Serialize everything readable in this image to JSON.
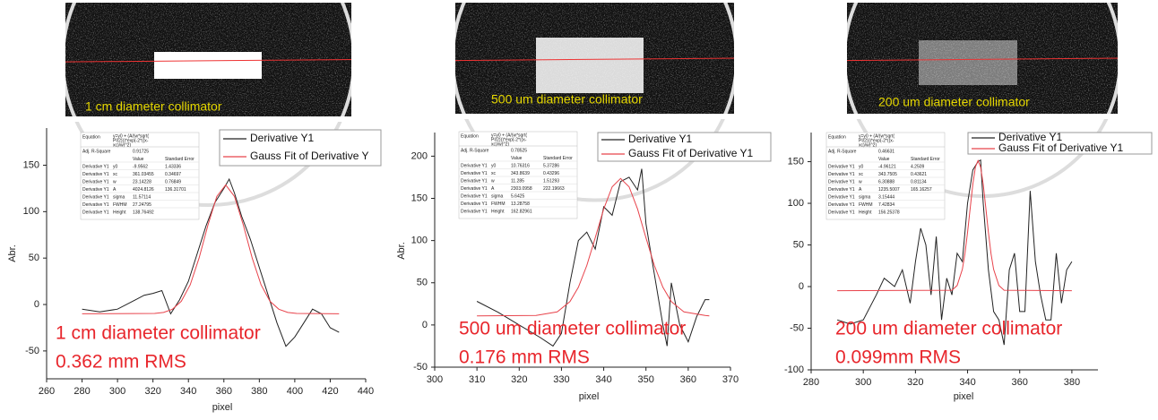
{
  "chart_data": [
    {
      "type": "line",
      "image_caption": "1 cm diameter collimator",
      "xlabel": "pixel",
      "ylabel": "Abr.",
      "annotations": [
        "1 cm diameter collimator",
        "0.362 mm RMS"
      ],
      "xlim": [
        260,
        440
      ],
      "xticks": [
        260,
        280,
        300,
        320,
        340,
        360,
        380,
        400,
        420,
        440
      ],
      "ylim": [
        -80,
        190
      ],
      "yticks": [
        -50,
        0,
        50,
        100,
        150
      ],
      "series": [
        {
          "name": "Derivative Y1",
          "color": "#222222",
          "x": [
            280,
            290,
            300,
            310,
            315,
            320,
            325,
            330,
            335,
            340,
            345,
            350,
            355,
            360,
            363,
            366,
            370,
            375,
            380,
            385,
            390,
            395,
            400,
            405,
            410,
            415,
            420,
            425
          ],
          "values": [
            -5,
            -8,
            -5,
            5,
            10,
            12,
            15,
            -10,
            5,
            25,
            55,
            85,
            110,
            125,
            135,
            120,
            95,
            70,
            40,
            10,
            -20,
            -45,
            -35,
            -20,
            -5,
            -10,
            -25,
            -30
          ]
        },
        {
          "name": "Gauss Fit of Derivative Y",
          "color": "#e8434b",
          "x": [
            280,
            321,
            326,
            331,
            336,
            341,
            346,
            351,
            356,
            361,
            366,
            371,
            376,
            381,
            386,
            391,
            396,
            401,
            425
          ],
          "values": [
            -10,
            -9.6,
            -8.5,
            -5.1,
            3.5,
            21.2,
            50,
            85.5,
            116.4,
            128.8,
            116.4,
            85.5,
            50,
            21.2,
            3.5,
            -5.1,
            -8.5,
            -9.6,
            -10
          ]
        }
      ],
      "fit_table": {
        "equation_label": "Equation",
        "equation_lines": [
          "y=y0 + (A/(w*sqrt(",
          "PI/2)))*exp(-2*((x-",
          "xc)/w)^2)"
        ],
        "r_square_label": "Adj. R-Square",
        "r_square": "0.91725",
        "header": [
          "Value",
          "Standard Error"
        ],
        "rows": [
          [
            "Derivative Y1",
            "y0",
            "-9.9562",
            "1.43336"
          ],
          [
            "Derivative Y1",
            "xc",
            "361.03455",
            "0.34697"
          ],
          [
            "Derivative Y1",
            "w",
            "23.14228",
            "0.76849"
          ],
          [
            "Derivative Y1",
            "A",
            "4024.8126",
            "136.31701"
          ],
          [
            "Derivative Y1",
            "sigma",
            "11.57114"
          ],
          [
            "Derivative Y1",
            "FWHM",
            "27.24795"
          ],
          [
            "Derivative Y1",
            "Height",
            "138.76492"
          ]
        ]
      }
    },
    {
      "type": "line",
      "image_caption": "500 um diameter collimator",
      "xlabel": "pixel",
      "ylabel": "Abr.",
      "annotations": [
        "500 um diameter collimator",
        "0.176 mm RMS"
      ],
      "xlim": [
        300,
        370
      ],
      "xticks": [
        300,
        310,
        320,
        330,
        340,
        350,
        360,
        370
      ],
      "ylim": [
        -50,
        228
      ],
      "yticks": [
        -50,
        0,
        50,
        100,
        150,
        200
      ],
      "series": [
        {
          "name": "Derivative Y1",
          "color": "#222222",
          "x": [
            310,
            315,
            320,
            325,
            328,
            330,
            332,
            334,
            336,
            338,
            340,
            342,
            344,
            346,
            348,
            349,
            350,
            352,
            354,
            355,
            356,
            358,
            360,
            362,
            364,
            365
          ],
          "values": [
            28,
            15,
            0,
            -15,
            -25,
            -10,
            50,
            100,
            110,
            90,
            140,
            130,
            170,
            175,
            160,
            185,
            120,
            60,
            0,
            -25,
            50,
            0,
            -20,
            10,
            30,
            30
          ]
        },
        {
          "name": "Gauss Fit of Derivative Y1",
          "color": "#e8434b",
          "x": [
            310,
            324,
            329,
            332,
            334,
            336,
            338,
            340,
            342,
            344,
            346,
            348,
            350,
            352,
            354,
            356,
            359,
            364,
            365
          ],
          "values": [
            10.8,
            11.3,
            15.5,
            27.7,
            44.6,
            70.4,
            103.3,
            137.5,
            163.7,
            173.6,
            163.7,
            137.5,
            103.3,
            70.4,
            44.6,
            27.7,
            15.5,
            11.3,
            10.8
          ]
        }
      ],
      "fit_table": {
        "equation_label": "Equation",
        "equation_lines": [
          "y=y0 + (A/(w*sqrt(",
          "PI/2)))*exp(-2*((x-",
          "xc)/w)^2)"
        ],
        "r_square_label": "Adj. R-Square",
        "r_square": "0.78525",
        "header": [
          "Value",
          "Standard Error"
        ],
        "rows": [
          [
            "Derivative Y1",
            "y0",
            "10.76316",
            "5.37286"
          ],
          [
            "Derivative Y1",
            "xc",
            "343.8639",
            "0.43296"
          ],
          [
            "Derivative Y1",
            "w",
            "11.285",
            "1.51293"
          ],
          [
            "Derivative Y1",
            "A",
            "2303.0958",
            "222.19663"
          ],
          [
            "Derivative Y1",
            "sigma",
            "5.6425"
          ],
          [
            "Derivative Y1",
            "FWHM",
            "13.28758"
          ],
          [
            "Derivative Y1",
            "Height",
            "162.82961"
          ]
        ]
      }
    },
    {
      "type": "line",
      "image_caption": "200 um diameter collimator",
      "xlabel": "pixel",
      "annotations": [
        "200 um diameter collimator",
        "0.099mm RMS"
      ],
      "xlim": [
        280,
        390
      ],
      "xticks": [
        280,
        300,
        320,
        340,
        360,
        380
      ],
      "ylim": [
        -100,
        185
      ],
      "yticks": [
        -100,
        -50,
        0,
        50,
        100,
        150
      ],
      "series": [
        {
          "name": "Derivative Y1",
          "color": "#222222",
          "x": [
            290,
            295,
            300,
            305,
            308,
            312,
            315,
            318,
            320,
            322,
            324,
            326,
            328,
            330,
            332,
            334,
            336,
            338,
            340,
            342,
            344,
            345,
            346,
            348,
            350,
            352,
            354,
            356,
            358,
            360,
            362,
            364,
            366,
            368,
            370,
            372,
            374,
            376,
            378,
            380
          ],
          "values": [
            -40,
            -45,
            -40,
            -10,
            10,
            0,
            20,
            -20,
            30,
            70,
            50,
            -10,
            60,
            -40,
            10,
            -10,
            40,
            30,
            100,
            140,
            150,
            152,
            100,
            20,
            -30,
            -40,
            -70,
            20,
            40,
            -30,
            -30,
            115,
            30,
            -10,
            -40,
            -40,
            40,
            -20,
            20,
            30
          ]
        },
        {
          "name": "Gauss Fit of Derivative Y1",
          "color": "#e8434b",
          "x": [
            290,
            334,
            336,
            338,
            339,
            340,
            341,
            342,
            343,
            344,
            345,
            346,
            347,
            348,
            349,
            350,
            352,
            354,
            380
          ],
          "values": [
            -4.96,
            -4.4,
            1.3,
            20.7,
            39.5,
            65,
            94.4,
            122.9,
            143.6,
            151.3,
            143.6,
            122.9,
            94.4,
            65,
            39.5,
            20.7,
            1.3,
            -4.4,
            -4.96
          ]
        }
      ],
      "fit_table": {
        "equation_label": "Equation",
        "equation_lines": [
          "y=y0 + (A/(w*sqrt(",
          "PI/2)))*exp(-2*((x-",
          "xc)/w)^2)"
        ],
        "r_square_label": "Adj. R-Square",
        "r_square": "0.46631",
        "header": [
          "Value",
          "Standard Error"
        ],
        "rows": [
          [
            "Derivative Y1",
            "y0",
            "-4.96121",
            "4.2509"
          ],
          [
            "Derivative Y1",
            "xc",
            "343.7505",
            "0.43621"
          ],
          [
            "Derivative Y1",
            "w",
            "6.30888",
            "0.81134"
          ],
          [
            "Derivative Y1",
            "A",
            "1235.5007",
            "165.16257"
          ],
          [
            "Derivative Y1",
            "sigma",
            "3.15444"
          ],
          [
            "Derivative Y1",
            "FWHM",
            "7.42834"
          ],
          [
            "Derivative Y1",
            "Height",
            "156.25378"
          ]
        ]
      }
    }
  ]
}
